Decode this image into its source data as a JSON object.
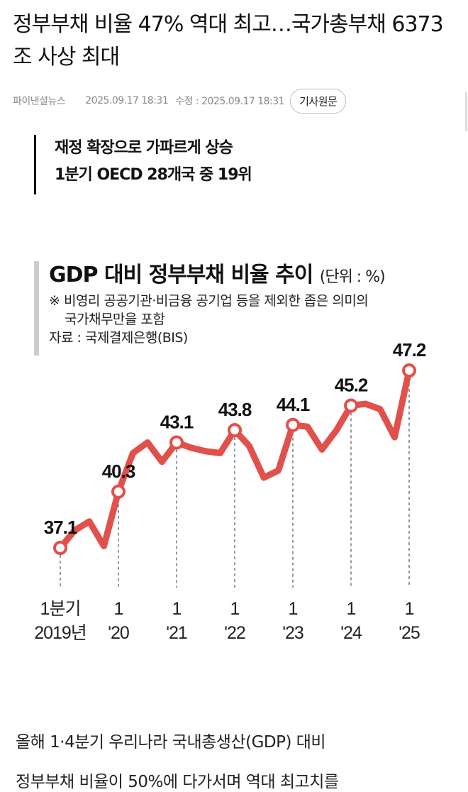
{
  "article": {
    "headline": "정부부채 비율 47% 역대 최고…국가총부채 6373조 사상 최대",
    "source": "파이낸셜뉴스",
    "published": "2025.09.17 18:31",
    "modified": "수정 : 2025.09.17 18:31",
    "original_button": "기사원문",
    "subhead": [
      "재정 확장으로 가파르게 상승",
      "1분기 OECD 28개국 중 19위"
    ],
    "body": [
      "올해 1·4분기 우리나라 국내총생산(GDP) 대비",
      "정부부채 비율이 50%에 다가서며 역대 최고치를"
    ]
  },
  "chart_data": {
    "type": "line",
    "title": "GDP 대비 정부부채 비율 추이",
    "unit": "(단위 : %)",
    "notes": [
      "※ 비영리 공공기관·비금융 공기업 등을 제외한 좁은 의미의",
      "국가채무만을 포함"
    ],
    "source": "자료 : 국제결제은행(BIS)",
    "color": "#e2504b",
    "x": [
      "2019Q1",
      "2019Q2",
      "2019Q3",
      "2019Q4",
      "2020Q1",
      "2020Q2",
      "2020Q3",
      "2020Q4",
      "2021Q1",
      "2021Q2",
      "2021Q3",
      "2021Q4",
      "2022Q1",
      "2022Q2",
      "2022Q3",
      "2022Q4",
      "2023Q1",
      "2023Q2",
      "2023Q3",
      "2023Q4",
      "2024Q1",
      "2024Q2",
      "2024Q3",
      "2024Q4",
      "2025Q1"
    ],
    "values": [
      37.1,
      38.1,
      38.6,
      37.2,
      40.3,
      42.5,
      43.1,
      42.0,
      43.1,
      42.8,
      42.6,
      42.5,
      43.8,
      42.9,
      41.1,
      41.5,
      44.1,
      44.0,
      42.7,
      43.8,
      45.2,
      45.3,
      45.0,
      43.4,
      47.2
    ],
    "labeled_points": [
      {
        "index": 0,
        "label": "37.1"
      },
      {
        "index": 4,
        "label": "40.3"
      },
      {
        "index": 8,
        "label": "43.1"
      },
      {
        "index": 12,
        "label": "43.8"
      },
      {
        "index": 16,
        "label": "44.1"
      },
      {
        "index": 20,
        "label": "45.2"
      },
      {
        "index": 24,
        "label": "47.2"
      }
    ],
    "tick_labels": [
      {
        "index": 0,
        "top": "1분기",
        "bottom": "2019년"
      },
      {
        "index": 4,
        "top": "1",
        "bottom": "'20"
      },
      {
        "index": 8,
        "top": "1",
        "bottom": "'21"
      },
      {
        "index": 12,
        "top": "1",
        "bottom": "'22"
      },
      {
        "index": 16,
        "top": "1",
        "bottom": "'23"
      },
      {
        "index": 20,
        "top": "1",
        "bottom": "'24"
      },
      {
        "index": 24,
        "top": "1",
        "bottom": "'25"
      }
    ],
    "grid": false
  }
}
